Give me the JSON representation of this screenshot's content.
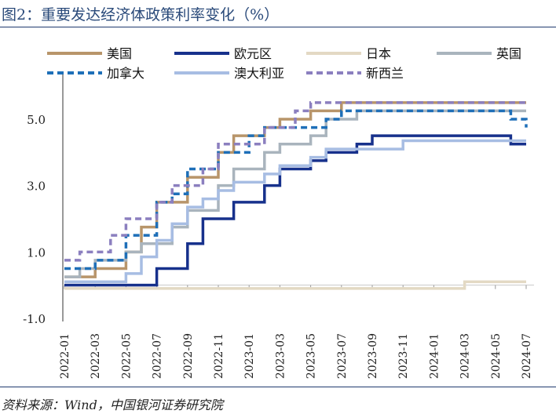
{
  "page": {
    "title": "图2：重要发达经济体政策利率变化（%）",
    "source": "资料来源：Wind，中国银河证券研究院"
  },
  "chart_data": {
    "type": "line",
    "step": true,
    "title": "图2：重要发达经济体政策利率变化（%）",
    "xlabel": "",
    "ylabel": "",
    "ylim": [
      -1.0,
      5.5
    ],
    "yticks": [
      -1.0,
      1.0,
      3.0,
      5.0
    ],
    "ytick_labels": [
      "-1.0",
      "1.0",
      "3.0",
      "5.0"
    ],
    "xticks": [
      "2022-01",
      "2022-03",
      "2022-05",
      "2022-07",
      "2022-09",
      "2022-11",
      "2023-01",
      "2023-03",
      "2023-05",
      "2023-07",
      "2023-09",
      "2023-11",
      "2024-01",
      "2024-03",
      "2024-05",
      "2024-07"
    ],
    "x_range": [
      "2022-01",
      "2024-07"
    ],
    "legend_position": "top",
    "series": [
      {
        "name": "美国",
        "color": "#b8956a",
        "dash": false,
        "points": [
          [
            "2022-01",
            0.25
          ],
          [
            "2022-03",
            0.5
          ],
          [
            "2022-05",
            1.0
          ],
          [
            "2022-06",
            1.75
          ],
          [
            "2022-07",
            2.5
          ],
          [
            "2022-09",
            3.25
          ],
          [
            "2022-11",
            4.0
          ],
          [
            "2022-12",
            4.5
          ],
          [
            "2023-02",
            4.75
          ],
          [
            "2023-03",
            5.0
          ],
          [
            "2023-05",
            5.25
          ],
          [
            "2023-07",
            5.5
          ],
          [
            "2024-07",
            5.5
          ]
        ]
      },
      {
        "name": "欧元区",
        "color": "#17318c",
        "dash": false,
        "points": [
          [
            "2022-01",
            0.0
          ],
          [
            "2022-07",
            0.5
          ],
          [
            "2022-09",
            1.25
          ],
          [
            "2022-10",
            2.0
          ],
          [
            "2022-12",
            2.5
          ],
          [
            "2023-02",
            3.0
          ],
          [
            "2023-03",
            3.5
          ],
          [
            "2023-05",
            3.75
          ],
          [
            "2023-06",
            4.0
          ],
          [
            "2023-08",
            4.25
          ],
          [
            "2023-09",
            4.5
          ],
          [
            "2024-06",
            4.25
          ],
          [
            "2024-07",
            4.25
          ]
        ]
      },
      {
        "name": "日本",
        "color": "#e3d9c4",
        "dash": false,
        "points": [
          [
            "2022-01",
            -0.1
          ],
          [
            "2024-03",
            0.1
          ],
          [
            "2024-07",
            0.1
          ]
        ]
      },
      {
        "name": "英国",
        "color": "#a9b4bd",
        "dash": false,
        "points": [
          [
            "2022-01",
            0.25
          ],
          [
            "2022-02",
            0.5
          ],
          [
            "2022-03",
            0.75
          ],
          [
            "2022-05",
            1.0
          ],
          [
            "2022-06",
            1.25
          ],
          [
            "2022-08",
            1.75
          ],
          [
            "2022-09",
            2.25
          ],
          [
            "2022-11",
            3.0
          ],
          [
            "2022-12",
            3.5
          ],
          [
            "2023-02",
            4.0
          ],
          [
            "2023-03",
            4.25
          ],
          [
            "2023-05",
            4.5
          ],
          [
            "2023-06",
            5.0
          ],
          [
            "2023-08",
            5.25
          ],
          [
            "2024-07",
            5.25
          ]
        ]
      },
      {
        "name": "加拿大",
        "color": "#1e6fb8",
        "dash": true,
        "points": [
          [
            "2022-01",
            0.5
          ],
          [
            "2022-03",
            0.75
          ],
          [
            "2022-05",
            1.5
          ],
          [
            "2022-07",
            2.5
          ],
          [
            "2022-08",
            2.75
          ],
          [
            "2022-09",
            3.5
          ],
          [
            "2022-11",
            4.0
          ],
          [
            "2023-01",
            4.5
          ],
          [
            "2023-02",
            4.75
          ],
          [
            "2023-06",
            5.0
          ],
          [
            "2023-07",
            5.25
          ],
          [
            "2024-06",
            5.0
          ],
          [
            "2024-07",
            4.75
          ]
        ]
      },
      {
        "name": "澳大利亚",
        "color": "#a7bde3",
        "dash": false,
        "points": [
          [
            "2022-01",
            0.1
          ],
          [
            "2022-05",
            0.35
          ],
          [
            "2022-06",
            0.85
          ],
          [
            "2022-07",
            1.35
          ],
          [
            "2022-08",
            1.85
          ],
          [
            "2022-09",
            2.35
          ],
          [
            "2022-10",
            2.6
          ],
          [
            "2022-11",
            2.85
          ],
          [
            "2022-12",
            3.1
          ],
          [
            "2023-02",
            3.35
          ],
          [
            "2023-03",
            3.6
          ],
          [
            "2023-05",
            3.85
          ],
          [
            "2023-06",
            4.1
          ],
          [
            "2023-11",
            4.35
          ],
          [
            "2024-07",
            4.35
          ]
        ]
      },
      {
        "name": "新西兰",
        "color": "#8b7fbf",
        "dash": true,
        "points": [
          [
            "2022-01",
            0.75
          ],
          [
            "2022-02",
            1.0
          ],
          [
            "2022-04",
            1.5
          ],
          [
            "2022-05",
            2.0
          ],
          [
            "2022-07",
            2.5
          ],
          [
            "2022-08",
            3.0
          ],
          [
            "2022-10",
            3.5
          ],
          [
            "2022-11",
            4.25
          ],
          [
            "2023-02",
            4.75
          ],
          [
            "2023-04",
            5.25
          ],
          [
            "2023-05",
            5.5
          ],
          [
            "2024-07",
            5.5
          ]
        ]
      }
    ]
  }
}
